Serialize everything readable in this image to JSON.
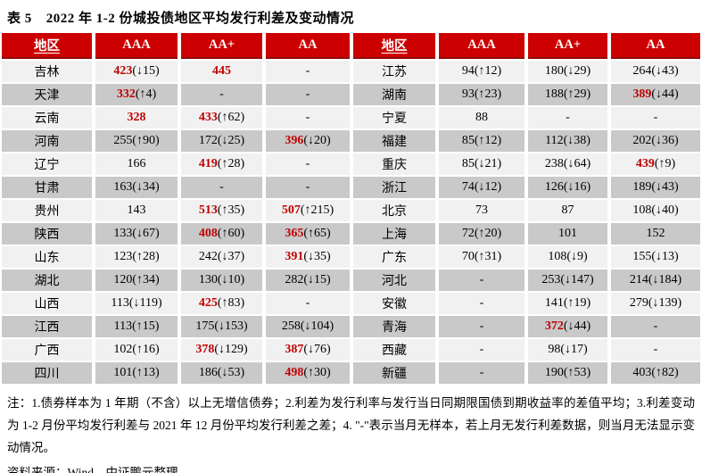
{
  "header": {
    "prefix": "表 5",
    "title": "2022 年 1-2 份城投债地区平均发行利差及变动情况"
  },
  "colors": {
    "header_bg": "#CC0000",
    "header_border": "#8E0B0B",
    "header_text": "#FFFFFF",
    "highlight": "#C00000",
    "row_light": "#F1F1F1",
    "row_dark": "#C9C9C9"
  },
  "table": {
    "headers": [
      {
        "label": "地区",
        "underline": true
      },
      {
        "label": "AAA"
      },
      {
        "label": "AA+"
      },
      {
        "label": "AA"
      },
      {
        "label": "地区",
        "underline": true
      },
      {
        "label": "AAA"
      },
      {
        "label": "AA+"
      },
      {
        "label": "AA"
      }
    ],
    "rows": [
      {
        "cells": [
          {
            "v": "吉林"
          },
          {
            "v": "423",
            "chg": "(↓15)",
            "hl": true
          },
          {
            "v": "445",
            "hl": true
          },
          {
            "v": "-"
          },
          {
            "v": "江苏"
          },
          {
            "v": "94",
            "chg": "(↑12)"
          },
          {
            "v": "180",
            "chg": "(↓29)"
          },
          {
            "v": "264",
            "chg": "(↓43)"
          }
        ]
      },
      {
        "cells": [
          {
            "v": "天津"
          },
          {
            "v": "332",
            "chg": "(↑4)",
            "hl": true
          },
          {
            "v": "-"
          },
          {
            "v": "-"
          },
          {
            "v": "湖南"
          },
          {
            "v": "93",
            "chg": "(↑23)"
          },
          {
            "v": "188",
            "chg": "(↑29)"
          },
          {
            "v": "389",
            "chg": "(↓44)",
            "hl": true
          }
        ]
      },
      {
        "cells": [
          {
            "v": "云南"
          },
          {
            "v": "328",
            "hl": true
          },
          {
            "v": "433",
            "chg": "(↑62)",
            "hl": true
          },
          {
            "v": "-"
          },
          {
            "v": "宁夏"
          },
          {
            "v": "88"
          },
          {
            "v": "-"
          },
          {
            "v": "-"
          }
        ]
      },
      {
        "cells": [
          {
            "v": "河南"
          },
          {
            "v": "255",
            "chg": "(↑90)"
          },
          {
            "v": "172",
            "chg": "(↓25)"
          },
          {
            "v": "396",
            "chg": "(↓20)",
            "hl": true
          },
          {
            "v": "福建"
          },
          {
            "v": "85",
            "chg": "(↑12)"
          },
          {
            "v": "112",
            "chg": "(↓38)"
          },
          {
            "v": "202",
            "chg": "(↓36)"
          }
        ]
      },
      {
        "cells": [
          {
            "v": "辽宁"
          },
          {
            "v": "166"
          },
          {
            "v": "419",
            "chg": "(↑28)",
            "hl": true
          },
          {
            "v": "-"
          },
          {
            "v": "重庆"
          },
          {
            "v": "85",
            "chg": "(↓21)"
          },
          {
            "v": "238",
            "chg": "(↓64)"
          },
          {
            "v": "439",
            "chg": "(↑9)",
            "hl": true
          }
        ]
      },
      {
        "cells": [
          {
            "v": "甘肃"
          },
          {
            "v": "163",
            "chg": "(↓34)"
          },
          {
            "v": "-"
          },
          {
            "v": "-"
          },
          {
            "v": "浙江"
          },
          {
            "v": "74",
            "chg": "(↓12)"
          },
          {
            "v": "126",
            "chg": "(↓16)"
          },
          {
            "v": "189",
            "chg": "(↓43)"
          }
        ]
      },
      {
        "cells": [
          {
            "v": "贵州"
          },
          {
            "v": "143"
          },
          {
            "v": "513",
            "chg": "(↑35)",
            "hl": true
          },
          {
            "v": "507",
            "chg": "(↑215)",
            "hl": true
          },
          {
            "v": "北京"
          },
          {
            "v": "73"
          },
          {
            "v": "87"
          },
          {
            "v": "108",
            "chg": "(↓40)"
          }
        ]
      },
      {
        "cells": [
          {
            "v": "陕西"
          },
          {
            "v": "133",
            "chg": "(↓67)"
          },
          {
            "v": "408",
            "chg": "(↑60)",
            "hl": true
          },
          {
            "v": "365",
            "chg": "(↑65)",
            "hl": true
          },
          {
            "v": "上海"
          },
          {
            "v": "72",
            "chg": "(↑20)"
          },
          {
            "v": "101"
          },
          {
            "v": "152"
          }
        ]
      },
      {
        "cells": [
          {
            "v": "山东"
          },
          {
            "v": "123",
            "chg": "(↑28)"
          },
          {
            "v": "242",
            "chg": "(↓37)"
          },
          {
            "v": "391",
            "chg": "(↓35)",
            "hl": true
          },
          {
            "v": "广东"
          },
          {
            "v": "70",
            "chg": "(↑31)"
          },
          {
            "v": "108",
            "chg": "(↓9)"
          },
          {
            "v": "155",
            "chg": "(↓13)"
          }
        ]
      },
      {
        "cells": [
          {
            "v": "湖北"
          },
          {
            "v": "120",
            "chg": "(↑34)"
          },
          {
            "v": "130",
            "chg": "(↓10)"
          },
          {
            "v": "282",
            "chg": "(↓15)"
          },
          {
            "v": "河北"
          },
          {
            "v": "-"
          },
          {
            "v": "253",
            "chg": "(↓147)"
          },
          {
            "v": "214",
            "chg": "(↓184)"
          }
        ]
      },
      {
        "cells": [
          {
            "v": "山西"
          },
          {
            "v": "113",
            "chg": "(↓119)"
          },
          {
            "v": "425",
            "chg": "(↑83)",
            "hl": true
          },
          {
            "v": "-"
          },
          {
            "v": "安徽"
          },
          {
            "v": "-"
          },
          {
            "v": "141",
            "chg": "(↑19)"
          },
          {
            "v": "279",
            "chg": "(↓139)"
          }
        ]
      },
      {
        "cells": [
          {
            "v": "江西"
          },
          {
            "v": "113",
            "chg": "(↑15)"
          },
          {
            "v": "175",
            "chg": "(↓153)"
          },
          {
            "v": "258",
            "chg": "(↓104)"
          },
          {
            "v": "青海"
          },
          {
            "v": "-"
          },
          {
            "v": "372",
            "chg": "(↓44)",
            "hl": true
          },
          {
            "v": "-"
          }
        ]
      },
      {
        "cells": [
          {
            "v": "广西"
          },
          {
            "v": "102",
            "chg": "(↑16)"
          },
          {
            "v": "378",
            "chg": "(↓129)",
            "hl": true
          },
          {
            "v": "387",
            "chg": "(↓76)",
            "hl": true
          },
          {
            "v": "西藏"
          },
          {
            "v": "-"
          },
          {
            "v": "98",
            "chg": "(↓17)"
          },
          {
            "v": "-"
          }
        ]
      },
      {
        "cells": [
          {
            "v": "四川"
          },
          {
            "v": "101",
            "chg": "(↑13)"
          },
          {
            "v": "186",
            "chg": "(↓53)"
          },
          {
            "v": "498",
            "chg": "(↑30)",
            "hl": true
          },
          {
            "v": "新疆"
          },
          {
            "v": "-"
          },
          {
            "v": "190",
            "chg": "(↑53)"
          },
          {
            "v": "403",
            "chg": "(↑82)"
          }
        ]
      }
    ]
  },
  "notes": "注：1.债券样本为 1 年期（不含）以上无增信债券；2.利差为发行利率与发行当日同期限国债到期收益率的差值平均；3.利差变动为 1-2 月份平均发行利差与 2021 年 12 月份平均发行利差之差；4. \"-\"表示当月无样本，若上月无发行利差数据，则当月无法显示变动情况。",
  "source": "资料来源：Wind，中证鹏元整理"
}
